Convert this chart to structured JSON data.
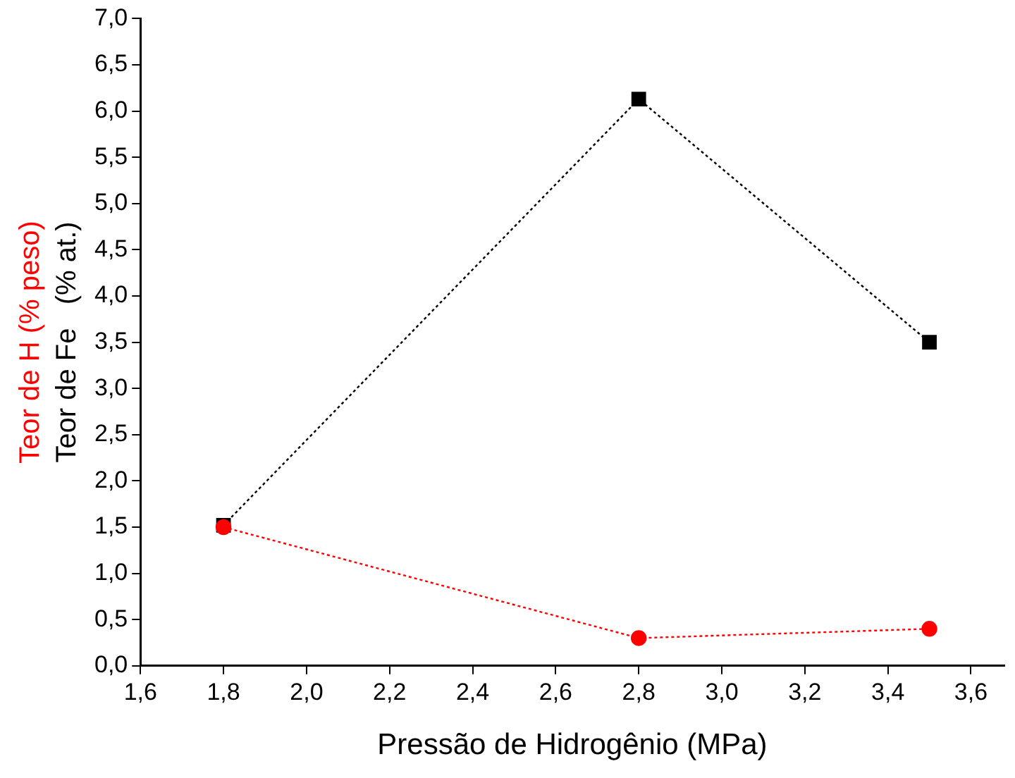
{
  "chart_data": {
    "type": "line",
    "xlabel": "Pressão de Hidrogênio (MPa)",
    "grid": false,
    "legend": false,
    "line_style": "dotted",
    "x": [
      1.8,
      2.8,
      3.5
    ],
    "xlim": [
      1.6,
      3.68
    ],
    "xticks": [
      {
        "value": 1.6,
        "label": "1,6"
      },
      {
        "value": 1.8,
        "label": "1,8"
      },
      {
        "value": 2.0,
        "label": "2,0"
      },
      {
        "value": 2.2,
        "label": "2,2"
      },
      {
        "value": 2.4,
        "label": "2,4"
      },
      {
        "value": 2.6,
        "label": "2,6"
      },
      {
        "value": 2.8,
        "label": "2,8"
      },
      {
        "value": 3.0,
        "label": "3,0"
      },
      {
        "value": 3.2,
        "label": "3,2"
      },
      {
        "value": 3.4,
        "label": "3,4"
      },
      {
        "value": 3.6,
        "label": "3,6"
      }
    ],
    "ylim": [
      0,
      7
    ],
    "yticks": [
      {
        "value": 0,
        "label": "0,0"
      },
      {
        "value": 0.5,
        "label": "0,5"
      },
      {
        "value": 1,
        "label": "1,0"
      },
      {
        "value": 1.5,
        "label": "1,5"
      },
      {
        "value": 2,
        "label": "2,0"
      },
      {
        "value": 2.5,
        "label": "2,5"
      },
      {
        "value": 3,
        "label": "3,0"
      },
      {
        "value": 3.5,
        "label": "3,5"
      },
      {
        "value": 4,
        "label": "4,0"
      },
      {
        "value": 4.5,
        "label": "4,5"
      },
      {
        "value": 5,
        "label": "5,0"
      },
      {
        "value": 5.5,
        "label": "5,5"
      },
      {
        "value": 6,
        "label": "6,0"
      },
      {
        "value": 6.5,
        "label": "6,5"
      },
      {
        "value": 7,
        "label": "7,0"
      }
    ],
    "series": [
      {
        "name": "Teor de H (% peso)",
        "color": "#ff0000",
        "marker": "circle",
        "values": [
          1.5,
          0.3,
          0.4
        ]
      },
      {
        "name": "Teor de Fe   (% at.)",
        "color": "#000000",
        "marker": "square",
        "values": [
          1.52,
          6.13,
          3.5
        ]
      }
    ]
  }
}
